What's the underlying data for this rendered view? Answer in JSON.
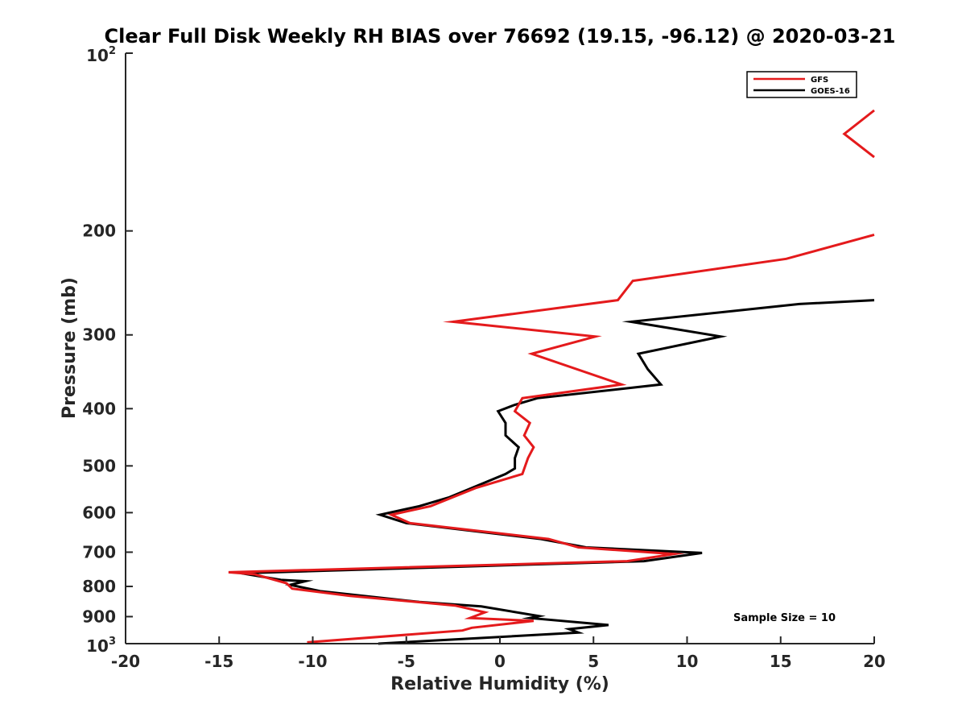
{
  "chart_data": {
    "type": "line",
    "title": "Clear Full Disk Weekly RH BIAS over 76692 (19.15, -96.12) @ 2020-03-21",
    "xlabel": "Relative Humidity (%)",
    "ylabel": "Pressure (mb)",
    "xlim": [
      -20,
      20
    ],
    "ylim": [
      100,
      1000
    ],
    "yscale": "log",
    "yreversed": true,
    "x_ticks": [
      -20,
      -15,
      -10,
      -5,
      0,
      5,
      10,
      15,
      20
    ],
    "x_tick_labels": [
      "-20",
      "-15",
      "-10",
      "-5",
      "0",
      "5",
      "10",
      "15",
      "20"
    ],
    "y_ticks": [
      200,
      300,
      400,
      500,
      600,
      700,
      800,
      900
    ],
    "y_tick_labels": [
      "200",
      "300",
      "400",
      "500",
      "600",
      "700",
      "800",
      "900"
    ],
    "y_top_label": {
      "base": "10",
      "exp": "2"
    },
    "y_bottom_label": {
      "base": "10",
      "exp": "3"
    },
    "annotation": "Sample Size = 10",
    "legend_position": "top-right",
    "series": [
      {
        "name": "GFS",
        "color": "#e41a1c",
        "segments": [
          [
            {
              "x": 20,
              "p": 125
            },
            {
              "x": 18.4,
              "p": 137
            },
            {
              "x": 20,
              "p": 150
            }
          ],
          [
            {
              "x": 20,
              "p": 203
            },
            {
              "x": 15.3,
              "p": 223
            },
            {
              "x": 7.1,
              "p": 243
            },
            {
              "x": 6.3,
              "p": 262
            },
            {
              "x": -2.5,
              "p": 285
            },
            {
              "x": 5.1,
              "p": 302
            },
            {
              "x": 1.7,
              "p": 323
            },
            {
              "x": 6.5,
              "p": 364
            },
            {
              "x": 1.2,
              "p": 384
            },
            {
              "x": 0.8,
              "p": 404
            },
            {
              "x": 1.6,
              "p": 423
            },
            {
              "x": 1.3,
              "p": 444
            },
            {
              "x": 1.8,
              "p": 465
            },
            {
              "x": 1.5,
              "p": 485
            },
            {
              "x": 1.2,
              "p": 516
            },
            {
              "x": -1.3,
              "p": 545
            },
            {
              "x": -3.7,
              "p": 585
            },
            {
              "x": -5.8,
              "p": 605
            },
            {
              "x": -4.8,
              "p": 625
            },
            {
              "x": 2.6,
              "p": 665
            },
            {
              "x": 4.2,
              "p": 687
            },
            {
              "x": 9.3,
              "p": 705
            },
            {
              "x": 6.8,
              "p": 725
            },
            {
              "x": -14.5,
              "p": 757
            },
            {
              "x": -13.1,
              "p": 763
            },
            {
              "x": -11.4,
              "p": 790
            },
            {
              "x": -11.1,
              "p": 807
            },
            {
              "x": -8,
              "p": 830
            },
            {
              "x": -2.4,
              "p": 862
            },
            {
              "x": -0.8,
              "p": 885
            },
            {
              "x": -1.6,
              "p": 905
            },
            {
              "x": 1.8,
              "p": 915
            },
            {
              "x": -1.5,
              "p": 940
            },
            {
              "x": -2,
              "p": 950
            },
            {
              "x": -10.3,
              "p": 995
            }
          ]
        ]
      },
      {
        "name": "GOES-16",
        "color": "#000000",
        "segments": [
          [
            {
              "x": 20,
              "p": 262
            },
            {
              "x": 16,
              "p": 266
            },
            {
              "x": 7,
              "p": 285
            },
            {
              "x": 11.8,
              "p": 302
            },
            {
              "x": 7.4,
              "p": 323
            },
            {
              "x": 7.9,
              "p": 343
            },
            {
              "x": 8.6,
              "p": 364
            },
            {
              "x": 2,
              "p": 384
            },
            {
              "x": 0.8,
              "p": 394
            },
            {
              "x": -0.1,
              "p": 404
            },
            {
              "x": 0.3,
              "p": 423
            },
            {
              "x": 0.3,
              "p": 444
            },
            {
              "x": 1,
              "p": 465
            },
            {
              "x": 0.8,
              "p": 485
            },
            {
              "x": 0.8,
              "p": 505
            },
            {
              "x": 0.3,
              "p": 516
            },
            {
              "x": -1.5,
              "p": 545
            },
            {
              "x": -2.7,
              "p": 565
            },
            {
              "x": -4.3,
              "p": 585
            },
            {
              "x": -6.4,
              "p": 605
            },
            {
              "x": -5,
              "p": 625
            },
            {
              "x": 2.2,
              "p": 665
            },
            {
              "x": 4.6,
              "p": 687
            },
            {
              "x": 10.8,
              "p": 702
            },
            {
              "x": 7.7,
              "p": 725
            },
            {
              "x": -13.8,
              "p": 760
            },
            {
              "x": -11.7,
              "p": 780
            },
            {
              "x": -10.4,
              "p": 784
            },
            {
              "x": -11.2,
              "p": 795
            },
            {
              "x": -9.6,
              "p": 815
            },
            {
              "x": -4.3,
              "p": 850
            },
            {
              "x": -1,
              "p": 865
            },
            {
              "x": 2.1,
              "p": 898
            },
            {
              "x": 1.6,
              "p": 905
            },
            {
              "x": 5.8,
              "p": 930
            },
            {
              "x": 3.7,
              "p": 945
            },
            {
              "x": 4.2,
              "p": 958
            },
            {
              "x": -6.5,
              "p": 1000
            }
          ]
        ]
      }
    ]
  }
}
